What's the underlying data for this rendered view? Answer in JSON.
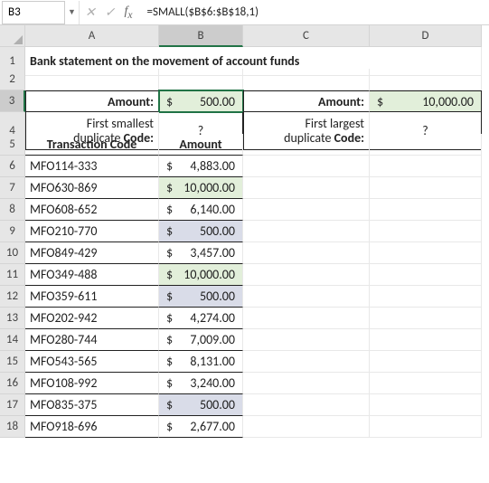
{
  "namebox": "B3",
  "formula": "=SMALL($B$6:$B$18,1)",
  "columns": [
    "A",
    "B",
    "C",
    "D"
  ],
  "rows": [
    "1",
    "2",
    "3",
    "4",
    "5",
    "6",
    "7",
    "8",
    "9",
    "10",
    "11",
    "12",
    "13",
    "14",
    "15",
    "16",
    "17",
    "18"
  ],
  "title": "Bank statement on the movement of account funds",
  "labels": {
    "amount_left": "Amount:",
    "amount_right": "Amount:",
    "first_smallest_1": "First smallest",
    "first_smallest_2": "duplicate Code:",
    "first_largest_1": "First largest",
    "first_largest_2": "duplicate Code:",
    "qmark": "?",
    "th_code": "Transaction Code",
    "th_amount": "Amount"
  },
  "summary": {
    "small_amount": "500.00",
    "large_amount": "10,000.00"
  },
  "currency": "$",
  "table": [
    {
      "code": "MFO114-333",
      "amt": "4,883.00",
      "hl": ""
    },
    {
      "code": "MFO630-869",
      "amt": "10,000.00",
      "hl": "green"
    },
    {
      "code": "MFO608-652",
      "amt": "6,140.00",
      "hl": ""
    },
    {
      "code": "MFO210-770",
      "amt": "500.00",
      "hl": "blue"
    },
    {
      "code": "MFO849-429",
      "amt": "3,457.00",
      "hl": ""
    },
    {
      "code": "MFO349-488",
      "amt": "10,000.00",
      "hl": "green"
    },
    {
      "code": "MFO359-611",
      "amt": "500.00",
      "hl": "blue"
    },
    {
      "code": "MFO202-942",
      "amt": "4,274.00",
      "hl": ""
    },
    {
      "code": "MFO280-744",
      "amt": "7,009.00",
      "hl": ""
    },
    {
      "code": "MFO543-565",
      "amt": "8,131.00",
      "hl": ""
    },
    {
      "code": "MFO108-992",
      "amt": "3,240.00",
      "hl": ""
    },
    {
      "code": "MFO835-375",
      "amt": "500.00",
      "hl": "blue"
    },
    {
      "code": "MFO918-696",
      "amt": "2,677.00",
      "hl": ""
    }
  ],
  "colors": {
    "green": "#e2efda",
    "blue": "#d9dce8",
    "sel": "#217346"
  }
}
